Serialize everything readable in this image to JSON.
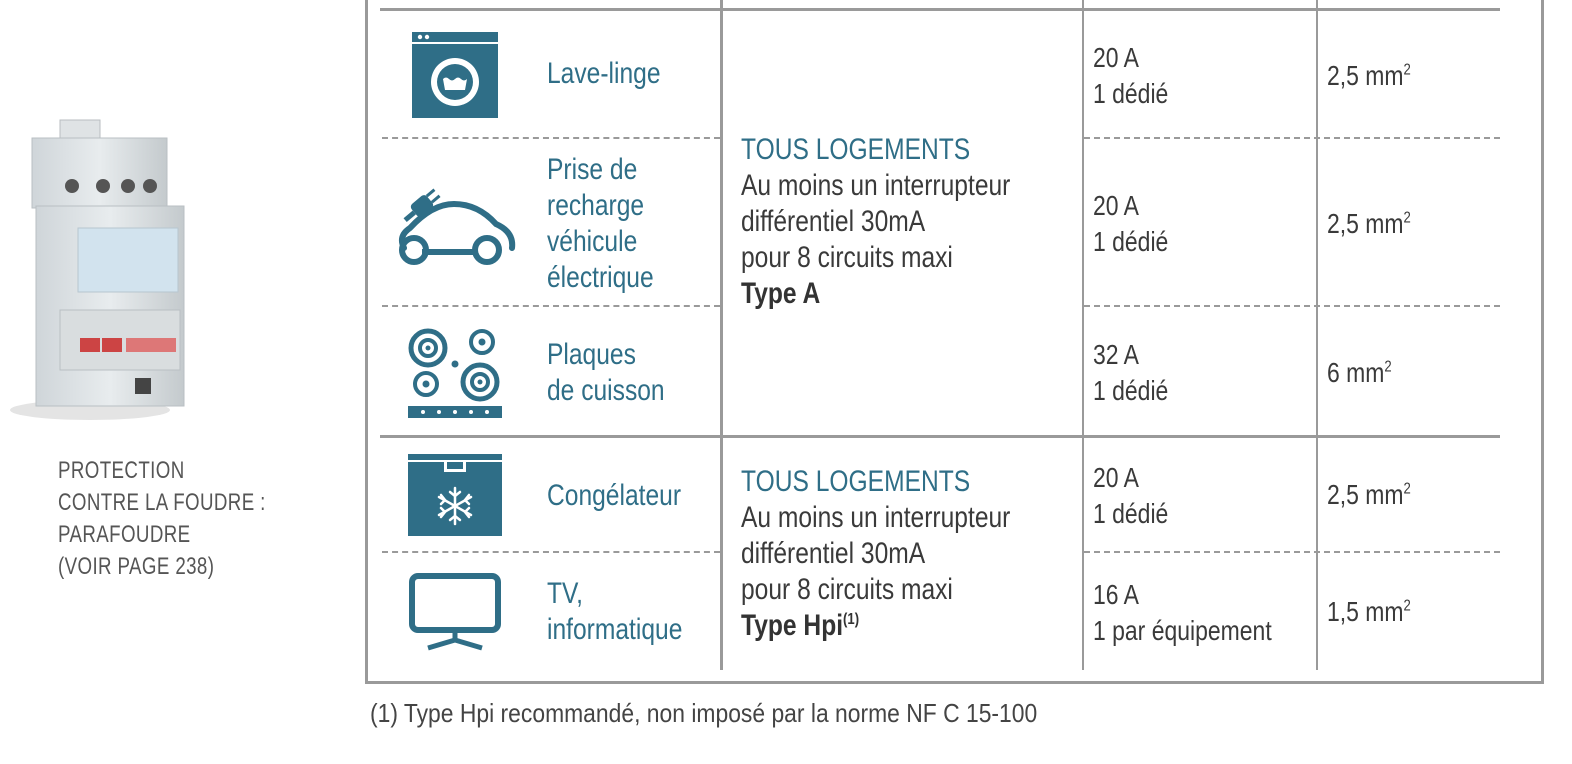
{
  "caption": {
    "lines": [
      "PROTECTION",
      "CONTRE LA FOUDRE :",
      "PARAFOUDRE",
      "(VOIR PAGE 238)"
    ]
  },
  "rows": [
    {
      "icon": "washing-machine-icon",
      "label_lines": [
        "Lave-linge"
      ],
      "rating_lines": [
        "20 A",
        "1 dédié"
      ],
      "section": "2,5 mm",
      "section_sup": "2"
    },
    {
      "icon": "electric-car-charging-icon",
      "label_lines": [
        "Prise de",
        "recharge",
        "véhicule",
        "électrique"
      ],
      "rating_lines": [
        "20 A",
        "1 dédié"
      ],
      "section": "2,5 mm",
      "section_sup": "2"
    },
    {
      "icon": "cooktop-icon",
      "label_lines": [
        "Plaques",
        "de cuisson"
      ],
      "rating_lines": [
        "32 A",
        "1 dédié"
      ],
      "section": "6 mm",
      "section_sup": "2"
    },
    {
      "icon": "freezer-icon",
      "label_lines": [
        "Congélateur"
      ],
      "rating_lines": [
        "20 A",
        "1 dédié"
      ],
      "section": "2,5 mm",
      "section_sup": "2"
    },
    {
      "icon": "tv-monitor-icon",
      "label_lines": [
        "TV,",
        "informatique"
      ],
      "rating_lines": [
        "16 A",
        "1 par équipement"
      ],
      "section": "1,5 mm",
      "section_sup": "2"
    }
  ],
  "groups": [
    {
      "title": "TOUS LOGEMENTS",
      "lines": [
        "Au moins un interrupteur",
        "différentiel 30mA",
        "pour 8 circuits maxi"
      ],
      "type_label": "Type A",
      "type_sup": ""
    },
    {
      "title": "TOUS LOGEMENTS",
      "lines": [
        "Au moins un interrupteur",
        "différentiel 30mA",
        "pour 8 circuits maxi"
      ],
      "type_label": "Type Hpi",
      "type_sup": "(1)"
    }
  ],
  "footnote": "(1) Type Hpi recommandé, non imposé par la norme NF C 15-100",
  "colors": {
    "accent": "#2f6e87",
    "rule": "#9a9a9a"
  }
}
